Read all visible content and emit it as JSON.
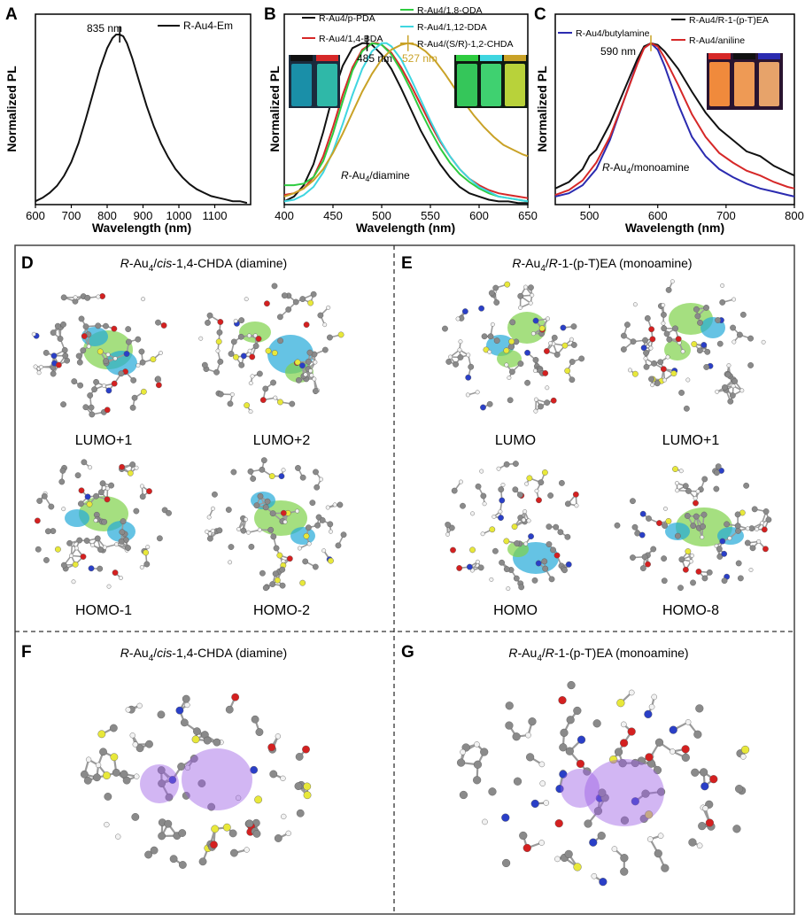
{
  "colors": {
    "black": "#111111",
    "red": "#d62828",
    "green": "#2ecc40",
    "cyan": "#3fd6e0",
    "gold": "#c9a227",
    "blue": "#2b2bb0",
    "darkred": "#c41e1e",
    "atom_c": "#8a8a8a",
    "atom_h": "#f2f2f2",
    "atom_s": "#e8e83a",
    "atom_n": "#2a3fc7",
    "atom_o": "#d42020",
    "orbital_green": "#7fd14a",
    "orbital_cyan": "#23a9d9",
    "orbital_purple": "#9b5de5"
  },
  "panel_labels": {
    "A": "A",
    "B": "B",
    "C": "C",
    "D": "D",
    "E": "E",
    "F": "F",
    "G": "G"
  },
  "chart_data": [
    {
      "panel": "A",
      "type": "line",
      "title": "",
      "xlabel": "Wavelength (nm)",
      "ylabel": "Normalized PL",
      "xlim": [
        600,
        1200
      ],
      "ylim": [
        0,
        1.12
      ],
      "xticks": [
        600,
        700,
        800,
        900,
        1000,
        1100
      ],
      "xtick_labels": [
        "600",
        "700",
        "800",
        "900",
        "1000",
        "1100"
      ],
      "legend": [
        "R-Au4-Em"
      ],
      "legend_loc": "top-right",
      "annotations": [
        {
          "text": "835 nm",
          "x": 835
        }
      ],
      "series": [
        {
          "name": "R-Au4-Em",
          "color": "#111111",
          "x": [
            600,
            620,
            640,
            660,
            680,
            700,
            720,
            740,
            760,
            780,
            800,
            815,
            825,
            835,
            845,
            855,
            870,
            890,
            910,
            930,
            950,
            970,
            990,
            1010,
            1030,
            1050,
            1070,
            1090,
            1110,
            1130,
            1150,
            1170,
            1190
          ],
          "y": [
            0.02,
            0.04,
            0.07,
            0.11,
            0.17,
            0.25,
            0.36,
            0.5,
            0.65,
            0.8,
            0.92,
            0.98,
            1.0,
            1.0,
            0.99,
            0.95,
            0.86,
            0.72,
            0.58,
            0.46,
            0.36,
            0.28,
            0.21,
            0.16,
            0.12,
            0.09,
            0.07,
            0.05,
            0.04,
            0.03,
            0.02,
            0.02,
            0.01
          ]
        }
      ]
    },
    {
      "panel": "B",
      "type": "line",
      "title": "",
      "xlabel": "Wavelength (nm)",
      "ylabel": "Normalized PL",
      "xlim": [
        400,
        650
      ],
      "ylim": [
        0,
        1.18
      ],
      "xticks": [
        400,
        450,
        500,
        550,
        600,
        650
      ],
      "xtick_labels": [
        "400",
        "450",
        "500",
        "550",
        "600",
        "650"
      ],
      "legend": [
        "R-Au4/p-PDA",
        "R-Au4/1,4-BDA",
        "R-Au4/1,8-ODA",
        "R-Au4/1,12-DDA",
        "R-Au4/(S/R)-1,2-CHDA"
      ],
      "legend_loc": "top",
      "annotations": [
        {
          "text": "485 nm",
          "x": 485
        },
        {
          "text": "527 nm",
          "x": 527
        },
        {
          "text": "R-Au4/diamine",
          "x": 460
        }
      ],
      "series": [
        {
          "name": "R-Au4/p-PDA",
          "color": "#111111",
          "x": [
            400,
            410,
            420,
            430,
            440,
            450,
            460,
            470,
            480,
            485,
            490,
            500,
            510,
            520,
            530,
            540,
            550,
            560,
            570,
            580,
            590,
            600,
            610,
            620,
            630,
            640,
            650
          ],
          "y": [
            0.02,
            0.05,
            0.12,
            0.25,
            0.45,
            0.68,
            0.86,
            0.97,
            1.0,
            1.0,
            0.99,
            0.93,
            0.84,
            0.72,
            0.59,
            0.46,
            0.35,
            0.25,
            0.17,
            0.11,
            0.07,
            0.05,
            0.03,
            0.02,
            0.02,
            0.01,
            0.01
          ]
        },
        {
          "name": "R-Au4/1,4-BDA",
          "color": "#d62828",
          "x": [
            400,
            410,
            420,
            430,
            440,
            450,
            460,
            470,
            480,
            490,
            495,
            500,
            510,
            520,
            530,
            540,
            550,
            560,
            570,
            580,
            590,
            600,
            610,
            620,
            630,
            640,
            650
          ],
          "y": [
            0.06,
            0.07,
            0.1,
            0.17,
            0.3,
            0.48,
            0.68,
            0.85,
            0.96,
            1.0,
            1.0,
            0.99,
            0.94,
            0.85,
            0.74,
            0.62,
            0.5,
            0.39,
            0.3,
            0.22,
            0.16,
            0.12,
            0.09,
            0.07,
            0.06,
            0.05,
            0.04
          ]
        },
        {
          "name": "R-Au4/1,8-ODA",
          "color": "#2ecc40",
          "x": [
            400,
            410,
            420,
            430,
            440,
            450,
            460,
            470,
            480,
            490,
            500,
            510,
            520,
            530,
            540,
            550,
            560,
            570,
            580,
            590,
            600,
            610,
            620,
            630,
            640,
            650
          ],
          "y": [
            0.12,
            0.12,
            0.13,
            0.17,
            0.27,
            0.44,
            0.64,
            0.83,
            0.95,
            1.0,
            0.99,
            0.93,
            0.83,
            0.71,
            0.58,
            0.46,
            0.35,
            0.26,
            0.19,
            0.14,
            0.1,
            0.07,
            0.05,
            0.04,
            0.03,
            0.02
          ]
        },
        {
          "name": "R-Au4/1,12-DDA",
          "color": "#3fd6e0",
          "x": [
            400,
            410,
            420,
            430,
            440,
            450,
            460,
            470,
            480,
            490,
            500,
            505,
            510,
            520,
            530,
            540,
            550,
            560,
            570,
            580,
            590,
            600,
            610,
            620,
            630,
            640,
            650
          ],
          "y": [
            0.02,
            0.03,
            0.06,
            0.11,
            0.2,
            0.33,
            0.5,
            0.68,
            0.84,
            0.95,
            1.0,
            1.0,
            0.98,
            0.9,
            0.78,
            0.65,
            0.52,
            0.4,
            0.3,
            0.22,
            0.16,
            0.11,
            0.08,
            0.05,
            0.04,
            0.03,
            0.02
          ]
        },
        {
          "name": "R-Au4/(S/R)-1,2-CHDA",
          "color": "#c9a227",
          "x": [
            400,
            410,
            420,
            430,
            440,
            450,
            460,
            470,
            480,
            490,
            500,
            510,
            520,
            527,
            535,
            545,
            555,
            565,
            575,
            585,
            595,
            605,
            615,
            625,
            635,
            645,
            650
          ],
          "y": [
            0.05,
            0.07,
            0.1,
            0.15,
            0.22,
            0.32,
            0.44,
            0.57,
            0.7,
            0.81,
            0.9,
            0.96,
            0.99,
            1.0,
            0.99,
            0.95,
            0.89,
            0.81,
            0.72,
            0.63,
            0.55,
            0.48,
            0.42,
            0.37,
            0.34,
            0.31,
            0.3
          ]
        }
      ]
    },
    {
      "panel": "C",
      "type": "line",
      "title": "",
      "xlabel": "Wavelength (nm)",
      "ylabel": "Normalized PL",
      "xlim": [
        450,
        800
      ],
      "ylim": [
        0,
        1.18
      ],
      "xticks": [
        500,
        600,
        700,
        800
      ],
      "xtick_labels": [
        "500",
        "600",
        "700",
        "800"
      ],
      "legend": [
        "R-Au4/butylamine",
        "R-Au4/R-1-(p-T)EA",
        "R-Au4/aniline"
      ],
      "legend_loc": "top",
      "annotations": [
        {
          "text": "590 nm",
          "x": 590
        },
        {
          "text": "R-Au4/monoamine",
          "x": 560
        }
      ],
      "series": [
        {
          "name": "R-Au4/butylamine",
          "color": "#2b2bb0",
          "x": [
            450,
            470,
            490,
            510,
            530,
            550,
            570,
            580,
            590,
            600,
            610,
            630,
            650,
            670,
            690,
            710,
            730,
            750,
            770,
            790,
            800
          ],
          "y": [
            0.05,
            0.07,
            0.12,
            0.22,
            0.4,
            0.64,
            0.88,
            0.97,
            1.0,
            0.96,
            0.86,
            0.62,
            0.42,
            0.3,
            0.22,
            0.17,
            0.13,
            0.1,
            0.08,
            0.06,
            0.05
          ]
        },
        {
          "name": "R-Au4/R-1-(p-T)EA",
          "color": "#111111",
          "x": [
            450,
            470,
            490,
            500,
            510,
            520,
            530,
            550,
            570,
            580,
            590,
            600,
            610,
            630,
            650,
            670,
            690,
            710,
            730,
            750,
            770,
            790,
            800
          ],
          "y": [
            0.1,
            0.14,
            0.22,
            0.3,
            0.34,
            0.42,
            0.5,
            0.7,
            0.9,
            0.98,
            1.0,
            0.99,
            0.95,
            0.84,
            0.7,
            0.57,
            0.47,
            0.4,
            0.33,
            0.3,
            0.24,
            0.2,
            0.18
          ]
        },
        {
          "name": "R-Au4/aniline",
          "color": "#d62828",
          "x": [
            450,
            470,
            490,
            510,
            530,
            550,
            570,
            580,
            590,
            600,
            610,
            630,
            650,
            670,
            690,
            710,
            730,
            750,
            770,
            790,
            800
          ],
          "y": [
            0.06,
            0.09,
            0.15,
            0.26,
            0.42,
            0.64,
            0.87,
            0.97,
            1.0,
            0.98,
            0.91,
            0.74,
            0.56,
            0.42,
            0.32,
            0.26,
            0.21,
            0.18,
            0.14,
            0.11,
            0.1
          ]
        }
      ]
    }
  ],
  "panel_d": {
    "title_prefix": "R",
    "title_mid": "-Au",
    "title_sub": "4",
    "title_slash": "/",
    "title_cis": "cis",
    "title_rest": "-1,4-CHDA (diamine)",
    "orbitals": [
      "LUMO+1",
      "LUMO+2",
      "HOMO-1",
      "HOMO-2"
    ]
  },
  "panel_e": {
    "title_prefix": "R",
    "title_mid": "-Au",
    "title_sub": "4",
    "title_slash": "/",
    "title_r": "R",
    "title_rest": "-1-(p-T)EA (monoamine)",
    "orbitals": [
      "LUMO",
      "LUMO+1",
      "HOMO",
      "HOMO-8"
    ]
  },
  "panel_f": {
    "title_prefix": "R",
    "title_mid": "-Au",
    "title_sub": "4",
    "title_slash": "/",
    "title_cis": "cis",
    "title_rest": "-1,4-CHDA (diamine)"
  },
  "panel_g": {
    "title_prefix": "R",
    "title_mid": "-Au",
    "title_sub": "4",
    "title_slash": "/",
    "title_r": "R",
    "title_rest": "-1-(p-T)EA (monoamine)"
  },
  "vial_colors": {
    "B": [
      "#1a8fa8",
      "#2fb8a8"
    ],
    "B2": [
      "#35c65a",
      "#3fd170",
      "#b8d23a"
    ],
    "C": [
      "#f08a3c",
      "#ee9a55",
      "#e7a36a"
    ]
  },
  "vial_caps": {
    "B": [
      "#111111",
      "#d62828"
    ],
    "B2": [
      "#2ecc40",
      "#3fd6e0",
      "#c9a227"
    ],
    "C": [
      "#d62828",
      "#111111",
      "#2b2bb0"
    ]
  }
}
